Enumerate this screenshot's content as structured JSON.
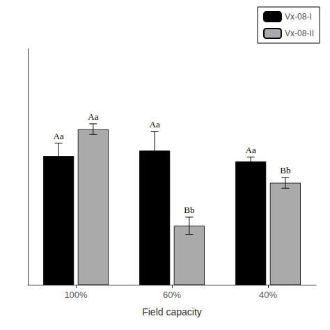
{
  "chart_data": {
    "type": "bar",
    "categories": [
      "100%",
      "60%",
      "40%"
    ],
    "series": [
      {
        "name": "Vx-08-I",
        "color": "#000000",
        "values": [
          86.0,
          86.5,
          85.5
        ],
        "errors": [
          1.2,
          1.8,
          0.4
        ],
        "letters": [
          "Aa",
          "Aa",
          "Aa"
        ]
      },
      {
        "name": "Vx-08-II",
        "color": "#aaaaaa",
        "values": [
          88.5,
          79.5,
          83.5
        ],
        "errors": [
          0.5,
          0.8,
          0.5
        ],
        "letters": [
          "Aa",
          "Bb",
          "Bb"
        ]
      }
    ],
    "xlabel": "Field capacity",
    "ylim": [
      74,
      96
    ],
    "yticks": [],
    "tick_labels": "x",
    "legend": "upper right",
    "grid": false
  }
}
